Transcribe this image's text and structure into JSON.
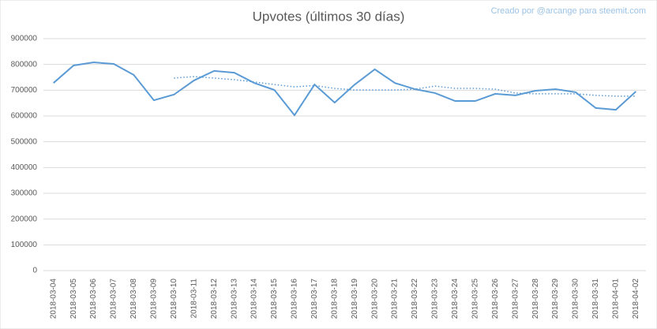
{
  "chart_data": {
    "type": "line",
    "title": "Upvotes (últimos 30 días)",
    "credit": "Creado por @arcange para steemit.com",
    "categories": [
      "2018-03-04",
      "2018-03-05",
      "2018-03-06",
      "2018-03-07",
      "2018-03-08",
      "2018-03-09",
      "2018-03-10",
      "2018-03-11",
      "2018-03-12",
      "2018-03-13",
      "2018-03-14",
      "2018-03-15",
      "2018-03-16",
      "2018-03-17",
      "2018-03-18",
      "2018-03-19",
      "2018-03-20",
      "2018-03-21",
      "2018-03-22",
      "2018-03-23",
      "2018-03-24",
      "2018-03-25",
      "2018-03-26",
      "2018-03-27",
      "2018-03-28",
      "2018-03-29",
      "2018-03-30",
      "2018-03-31",
      "2018-04-01",
      "2018-04-02"
    ],
    "series": [
      {
        "color": "#5b9bd5",
        "style": "solid",
        "values": [
          728000,
          796000,
          808000,
          802000,
          759000,
          661000,
          683000,
          738000,
          775000,
          768000,
          728000,
          701000,
          603000,
          722000,
          652000,
          722000,
          781000,
          728000,
          704000,
          689000,
          658000,
          658000,
          686000,
          680000,
          698000,
          704000,
          692000,
          631000,
          624000,
          695000
        ]
      },
      {
        "color": "#5b9bd5",
        "style": "dotted",
        "values": [
          null,
          null,
          null,
          null,
          null,
          null,
          747000,
          753000,
          747000,
          741000,
          732000,
          722000,
          713000,
          718000,
          707000,
          701000,
          701000,
          701000,
          704000,
          716000,
          707000,
          707000,
          704000,
          689000,
          686000,
          686000,
          686000,
          680000,
          677000,
          677000
        ]
      }
    ],
    "ylim": [
      0,
      900000
    ],
    "yticks": [
      0,
      100000,
      200000,
      300000,
      400000,
      500000,
      600000,
      700000,
      800000,
      900000
    ],
    "grid": true
  }
}
